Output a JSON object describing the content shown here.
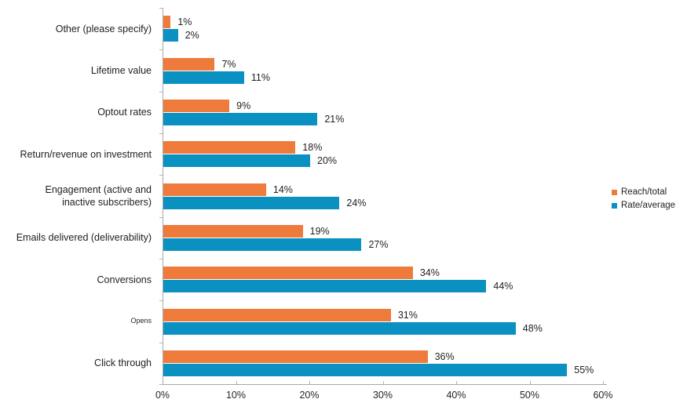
{
  "chart_data": {
    "type": "bar",
    "orientation": "horizontal",
    "title": "",
    "xlabel": "",
    "ylabel": "",
    "xlim": [
      0,
      60
    ],
    "xticks": [
      "0%",
      "10%",
      "20%",
      "30%",
      "40%",
      "50%",
      "60%"
    ],
    "grid": false,
    "legend_position": "right-middle",
    "data_labels": true,
    "label_suffix": "%",
    "categories": [
      {
        "label": "Other (please specify)"
      },
      {
        "label": "Lifetime value"
      },
      {
        "label": "Optout rates"
      },
      {
        "label": "Return/revenue on investment"
      },
      {
        "label": "Engagement (active and\ninactive subscribers)"
      },
      {
        "label": "Emails delivered (deliverability)"
      },
      {
        "label": "Conversions"
      },
      {
        "label": "Opens",
        "small_font": true
      },
      {
        "label": "Click through"
      }
    ],
    "series": [
      {
        "name": "Reach/total",
        "color": "#EE7B3C",
        "values": [
          1,
          7,
          9,
          18,
          14,
          19,
          34,
          31,
          36
        ]
      },
      {
        "name": "Rate/average",
        "color": "#0A90C1",
        "values": [
          2,
          11,
          21,
          20,
          24,
          27,
          44,
          48,
          55
        ]
      }
    ],
    "colors": {
      "axis": "#a9a9a9",
      "tick": "#b5b5b5",
      "text": "#1f1f1f",
      "background": "#ffffff"
    }
  }
}
